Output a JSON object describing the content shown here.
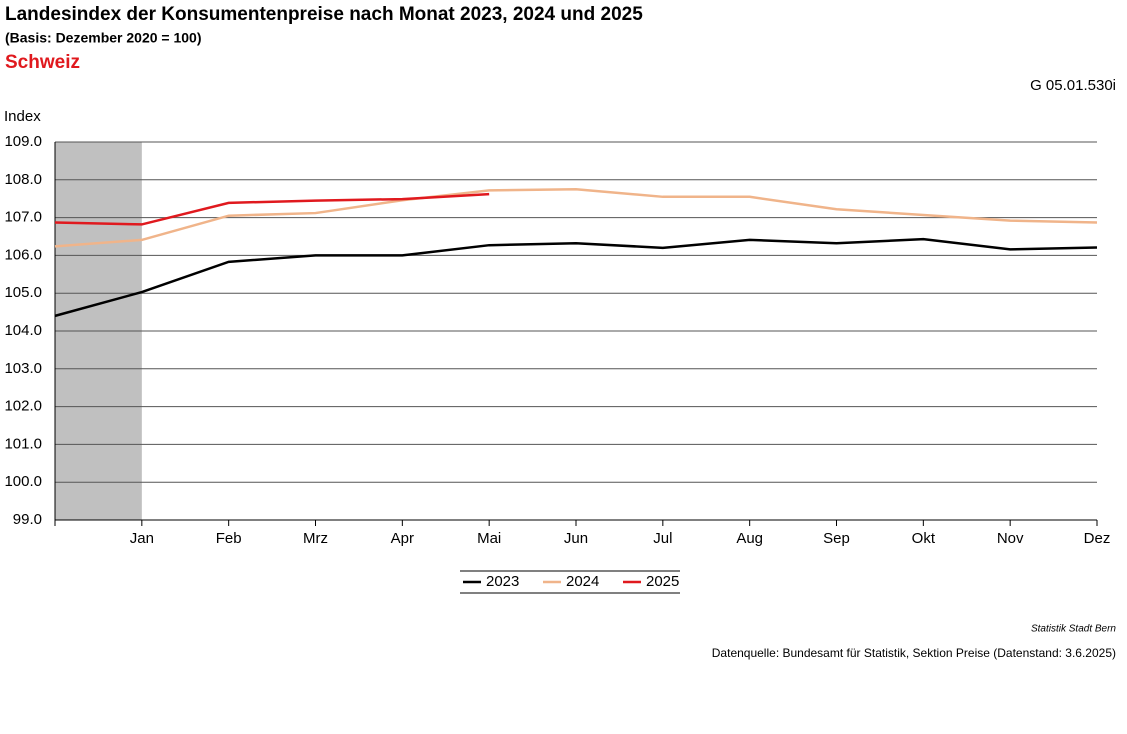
{
  "chart_data": {
    "type": "line",
    "title": "Landesindex der Konsumentenpreise nach Monat 2023, 2024 und 2025",
    "subtitle": "(Basis: Dezember 2020 = 100)",
    "region": "Schweiz",
    "code": "G 05.01.530i",
    "y_label": "Index",
    "source_org": "Statistik Stadt Bern",
    "source": "Datenquelle: Bundesamt für Statistik, Sektion Preise (Datenstand: 3.6.2025)",
    "categories": [
      null,
      "Jan",
      "Feb",
      "Mrz",
      "Apr",
      "Mai",
      "Jun",
      "Jul",
      "Aug",
      "Sep",
      "Okt",
      "Nov",
      "Dez"
    ],
    "series": [
      {
        "name": "2023",
        "color": "#000000",
        "values": [
          104.4,
          105.03,
          105.83,
          106.0,
          106.0,
          106.27,
          106.32,
          106.2,
          106.41,
          106.32,
          106.43,
          106.16,
          106.21
        ]
      },
      {
        "name": "2024",
        "color": "#f0b48a",
        "values": [
          106.24,
          106.41,
          107.05,
          107.12,
          107.46,
          107.72,
          107.75,
          107.55,
          107.55,
          107.22,
          107.07,
          106.92,
          106.87
        ]
      },
      {
        "name": "2025",
        "color": "#e0191e",
        "values": [
          106.87,
          106.82,
          107.39,
          107.45,
          107.49,
          107.62,
          null,
          null,
          null,
          null,
          null,
          null,
          null
        ]
      }
    ],
    "ylim": [
      99,
      109
    ],
    "yticks": [
      {
        "value": 99,
        "label": "99.0"
      },
      {
        "value": 100,
        "label": "100.0"
      },
      {
        "value": 101,
        "label": "101.0"
      },
      {
        "value": 102,
        "label": "102.0"
      },
      {
        "value": 103,
        "label": "103.0"
      },
      {
        "value": 104,
        "label": "104.0"
      },
      {
        "value": 105,
        "label": "105.0"
      },
      {
        "value": 106,
        "label": "106.0"
      },
      {
        "value": 107,
        "label": "107.0"
      },
      {
        "value": 108,
        "label": "108.0"
      },
      {
        "value": 109,
        "label": "109.0"
      }
    ],
    "grid": true
  }
}
